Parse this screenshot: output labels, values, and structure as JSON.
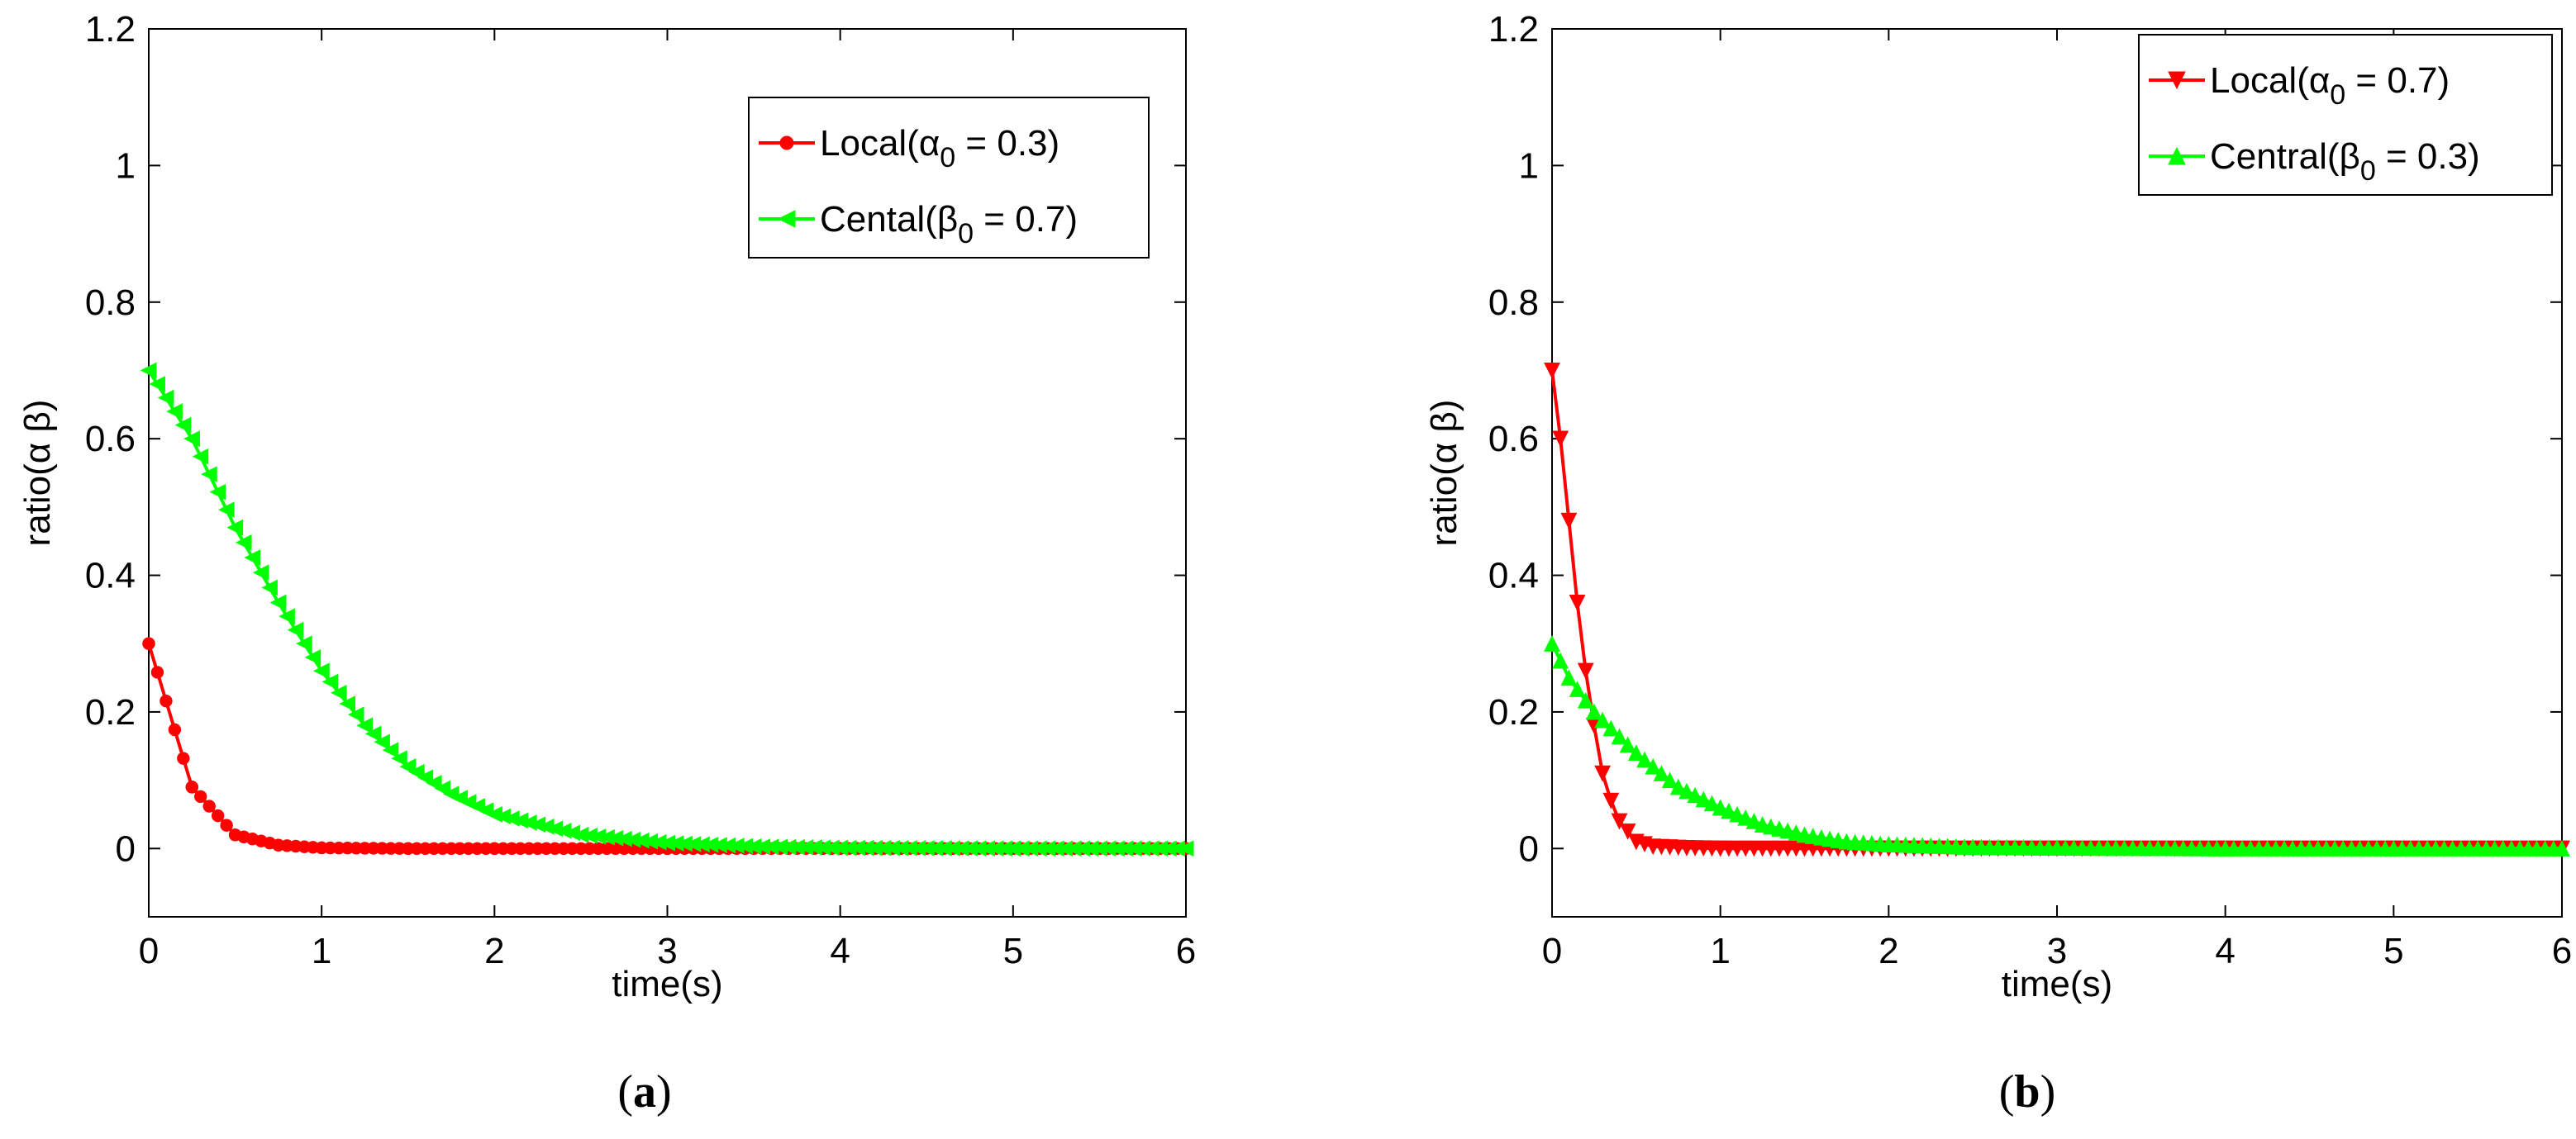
{
  "chart_data": [
    {
      "panel_label": "a",
      "type": "line",
      "xlabel": "time(s)",
      "ylabel": "ratio(α β)",
      "xlim": [
        0,
        6
      ],
      "ylim": [
        -0.1,
        1.2
      ],
      "xticks": [
        "0",
        "1",
        "2",
        "3",
        "4",
        "5",
        "6"
      ],
      "yticks": [
        "0",
        "0.2",
        "0.4",
        "0.6",
        "0.8",
        "1",
        "1.2"
      ],
      "legend_position": "top-right",
      "series": [
        {
          "name": "Local",
          "legend": {
            "prefix": "Local(",
            "symbol": "α",
            "sub": "0",
            "suffix": " = 0.3)"
          },
          "color": "#ff0000",
          "marker": "circle",
          "x": [
            0,
            0.25,
            0.5,
            0.75,
            1,
            1.5,
            2,
            3,
            4,
            5,
            6
          ],
          "values": [
            0.3,
            0.09,
            0.02,
            0.005,
            0.001,
            0,
            0,
            0,
            0,
            0,
            0
          ]
        },
        {
          "name": "Cental",
          "legend": {
            "prefix": "Cental(",
            "symbol": "β",
            "sub": "0",
            "suffix": " = 0.7)"
          },
          "color": "#00ff00",
          "marker": "triangle-left",
          "x": [
            0,
            0.25,
            0.5,
            0.75,
            1,
            1.25,
            1.5,
            1.75,
            2,
            2.5,
            3,
            3.5,
            4,
            5,
            6
          ],
          "values": [
            0.7,
            0.6,
            0.47,
            0.36,
            0.26,
            0.18,
            0.12,
            0.08,
            0.05,
            0.02,
            0.008,
            0.003,
            0.001,
            0,
            0
          ]
        }
      ]
    },
    {
      "panel_label": "b",
      "type": "line",
      "xlabel": "time(s)",
      "ylabel": "ratio(α β)",
      "xlim": [
        0,
        6
      ],
      "ylim": [
        -0.1,
        1.2
      ],
      "xticks": [
        "0",
        "1",
        "2",
        "3",
        "4",
        "5",
        "6"
      ],
      "yticks": [
        "0",
        "0.2",
        "0.4",
        "0.6",
        "0.8",
        "1",
        "1.2"
      ],
      "legend_position": "top-right",
      "series": [
        {
          "name": "Local",
          "legend": {
            "prefix": "Local(",
            "symbol": "α",
            "sub": "0",
            "suffix": " = 0.7)"
          },
          "color": "#ff0000",
          "marker": "triangle-down",
          "x": [
            0,
            0.05,
            0.1,
            0.15,
            0.2,
            0.25,
            0.3,
            0.35,
            0.4,
            0.5,
            0.6,
            0.8,
            1,
            2,
            3,
            4,
            5,
            6
          ],
          "values": [
            0.7,
            0.6,
            0.48,
            0.36,
            0.26,
            0.18,
            0.11,
            0.07,
            0.04,
            0.01,
            0.003,
            0.001,
            0,
            0,
            0,
            0,
            0,
            0
          ]
        },
        {
          "name": "Central",
          "legend": {
            "prefix": "Central(",
            "symbol": "β",
            "sub": "0",
            "suffix": " = 0.3)"
          },
          "color": "#00ff00",
          "marker": "triangle-up",
          "x": [
            0,
            0.1,
            0.25,
            0.5,
            0.75,
            1,
            1.25,
            1.5,
            1.75,
            2,
            2.5,
            3,
            4,
            5,
            6
          ],
          "values": [
            0.3,
            0.25,
            0.2,
            0.14,
            0.09,
            0.06,
            0.035,
            0.02,
            0.01,
            0.006,
            0.002,
            0.001,
            0,
            0,
            0
          ]
        }
      ]
    }
  ]
}
